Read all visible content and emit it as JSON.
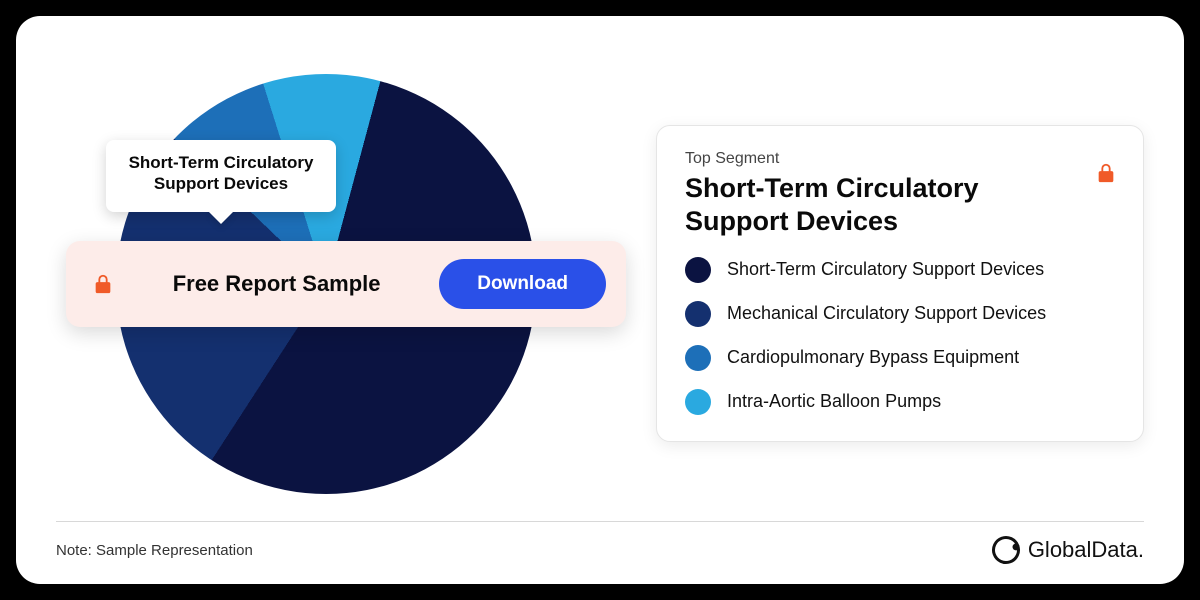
{
  "chart": {
    "type": "pie",
    "background_color": "#ffffff",
    "slices": [
      {
        "label": "Short-Term Circulatory Support Devices",
        "value": 55,
        "color": "#0b1341"
      },
      {
        "label": "Mechanical Circulatory Support Devices",
        "value": 28,
        "color": "#14306f"
      },
      {
        "label": "Cardiopulmonary Bypass Equipment",
        "value": 8,
        "color": "#1d6fb8"
      },
      {
        "label": "Intra-Aortic Balloon Pumps",
        "value": 9,
        "color": "#2aa9e0"
      }
    ],
    "start_angle_deg": 15,
    "callout_label": "Short-Term Circulatory\nSupport Devices"
  },
  "sample_bar": {
    "text": "Free Report Sample",
    "button": "Download",
    "bg_color": "#fdece9",
    "button_color": "#2a50e8",
    "lock_color": "#f05a28"
  },
  "legend": {
    "eyebrow": "Top Segment",
    "title": "Short-Term Circulatory Support Devices",
    "lock_color": "#f05a28",
    "items": [
      {
        "label": "Short-Term Circulatory Support Devices",
        "color": "#0b1341"
      },
      {
        "label": "Mechanical Circulatory Support Devices",
        "color": "#14306f"
      },
      {
        "label": "Cardiopulmonary Bypass Equipment",
        "color": "#1d6fb8"
      },
      {
        "label": "Intra-Aortic Balloon Pumps",
        "color": "#2aa9e0"
      }
    ]
  },
  "footer": {
    "note": "Note: Sample Representation",
    "brand": "GlobalData."
  },
  "card": {
    "border_radius": 24,
    "outer_bg": "#000000"
  }
}
